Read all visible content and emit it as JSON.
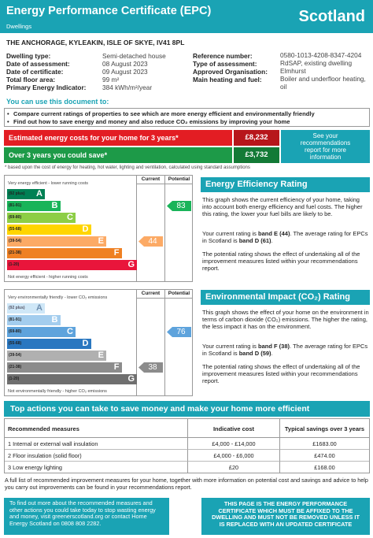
{
  "header": {
    "title": "Energy Performance Certificate (EPC)",
    "subtitle": "Dwellings",
    "region": "Scotland"
  },
  "address": "THE ANCHORAGE, KYLEAKIN, ISLE OF SKYE, IV41 8PL",
  "details_left": [
    [
      "Dwelling type:",
      "Semi-detached house"
    ],
    [
      "Date of assessment:",
      "08 August 2023"
    ],
    [
      "Date of certificate:",
      "09 August 2023"
    ],
    [
      "Total floor area:",
      "99 m²"
    ],
    [
      "Primary Energy Indicator:",
      "384 kWh/m²/year"
    ]
  ],
  "details_right": [
    [
      "Reference number:",
      "0580-1013-4208-8347-4204"
    ],
    [
      "Type of assessment:",
      "RdSAP, existing dwelling"
    ],
    [
      "Approved Organisation:",
      "Elmhurst"
    ],
    [
      "Main heating and fuel:",
      "Boiler and underfloor heating, oil"
    ]
  ],
  "uses": {
    "heading": "You can use this document to:",
    "items": [
      "Compare current ratings of properties to see which are more energy efficient and environmentally friendly",
      "Find out how to save energy and money and also reduce CO₂ emissions by improving your home"
    ]
  },
  "costs": {
    "rows": [
      [
        "Estimated energy costs for your home for 3 years*",
        "£8,232"
      ],
      [
        "Over 3 years you could save*",
        "£3,732"
      ]
    ],
    "note": "See your recommendations report for more information",
    "footnote": "* based upon the cost of energy for heating, hot water, lighting and ventilation, calculated using standard assumptions"
  },
  "charts": [
    {
      "top_label": "Very energy efficient - lower running costs",
      "bottom_label": "Not energy efficient - higher running costs",
      "col_current": "Current",
      "col_potential": "Potential",
      "bands": [
        [
          "(92 plus)",
          "A"
        ],
        [
          "(81-91)",
          "B"
        ],
        [
          "(69-80)",
          "C"
        ],
        [
          "(55-68)",
          "D"
        ],
        [
          "(39-54)",
          "E"
        ],
        [
          "(21-38)",
          "F"
        ],
        [
          "(1-20)",
          "G"
        ]
      ],
      "current": 44,
      "potential": 83
    },
    {
      "top_label": "Very environmentally friendly - lower CO₂ emissions",
      "bottom_label": "Not environmentally friendly - higher CO₂ emissions",
      "col_current": "Current",
      "col_potential": "Potential",
      "bands": [
        [
          "(92 plus)",
          "A"
        ],
        [
          "(81-91)",
          "B"
        ],
        [
          "(69-80)",
          "C"
        ],
        [
          "(55-68)",
          "D"
        ],
        [
          "(39-54)",
          "E"
        ],
        [
          "(21-38)",
          "F"
        ],
        [
          "(1-20)",
          "G"
        ]
      ],
      "current": 38,
      "potential": 76
    }
  ],
  "panels": [
    {
      "title": "Energy Efficiency Rating",
      "p1": "This graph shows the current efficiency of your home, taking into account both energy efficiency and fuel costs. The higher this rating, the lower your fuel bills are likely to be.",
      "p2": [
        "Your current rating is ",
        "band E (44)",
        ". The average rating for EPCs in Scotland is ",
        "band D (61)",
        "."
      ],
      "p3": "The potential rating shows the effect of undertaking all of the improvement measures listed within your recommendations report."
    },
    {
      "title": "Environmental Impact (CO₂) Rating",
      "p1": "This graph shows the effect of your home on the environment in terms of carbon dioxide (CO₂) emissions. The higher the rating, the less impact it has on the environment.",
      "p2": [
        "Your current rating is ",
        "band F (38)",
        ". The average rating for EPCs in Scotland is ",
        "band D (59)",
        "."
      ],
      "p3": "The potential rating shows the effect of undertaking all of the improvement measures listed within your recommendations report."
    }
  ],
  "actions": {
    "title": "Top actions you can take to save money and make your home more efficient",
    "headers": [
      "Recommended measures",
      "Indicative cost",
      "Typical savings over 3 years"
    ],
    "rows": [
      [
        "1 Internal or external wall insulation",
        "£4,000 - £14,000",
        "£1683.00"
      ],
      [
        "2 Floor insulation (solid floor)",
        "£4,000 - £6,000",
        "£474.00"
      ],
      [
        "3 Low energy lighting",
        "£20",
        "£168.00"
      ]
    ],
    "note": "A full list of recommended improvement measures for your home, together with more information on potential cost and savings and advice to help you carry out improvements can be found in your recommendations report."
  },
  "footer": {
    "left": "To find out more about the recommended measures and other actions you could take today to stop wasting energy and money, visit greenerscotland.org or contact Home Energy Scotland on 0808 808 2282.",
    "right": "THIS PAGE IS THE ENERGY PERFORMANCE CERTIFICATE WHICH MUST BE AFFIXED TO THE DWELLING AND MUST NOT BE REMOVED UNLESS IT IS REPLACED WITH AN UPDATED CERTIFICATE"
  }
}
